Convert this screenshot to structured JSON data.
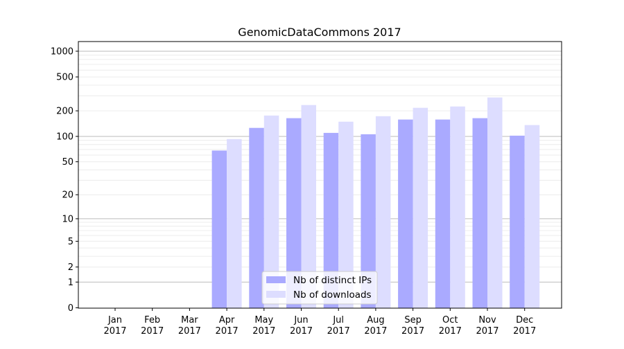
{
  "chart_data": {
    "type": "bar",
    "title": "GenomicDataCommons 2017",
    "xlabel": "",
    "ylabel": "",
    "yscale": "log(1+y)",
    "ylim": [
      0,
      1350
    ],
    "grid": true,
    "legend_position": "lower-center",
    "categories": [
      "Jan\n2017",
      "Feb\n2017",
      "Mar\n2017",
      "Apr\n2017",
      "May\n2017",
      "Jun\n2017",
      "Jul\n2017",
      "Aug\n2017",
      "Sep\n2017",
      "Oct\n2017",
      "Nov\n2017",
      "Dec\n2017"
    ],
    "ytick_labels": [
      "0",
      "1",
      "2",
      "5",
      "10",
      "20",
      "50",
      "100",
      "200",
      "500",
      "1000"
    ],
    "ytick_values": [
      0,
      1,
      2,
      5,
      10,
      20,
      50,
      100,
      200,
      500,
      1000
    ],
    "series": [
      {
        "name": "Nb of distinct IPs",
        "color": "#aaaaff",
        "values": [
          0,
          0,
          0,
          68,
          126,
          164,
          110,
          106,
          158,
          158,
          164,
          102
        ]
      },
      {
        "name": "Nb of downloads",
        "color": "#ddddff",
        "values": [
          0,
          0,
          0,
          93,
          176,
          234,
          149,
          173,
          217,
          225,
          287,
          136
        ]
      }
    ]
  }
}
